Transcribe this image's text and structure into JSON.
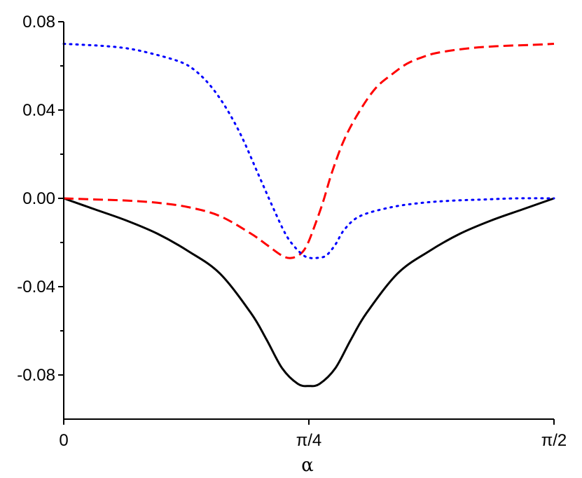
{
  "chart_data": {
    "type": "line",
    "xlabel": "α",
    "ylabel": "",
    "title": "",
    "xlim": [
      0,
      1.5708
    ],
    "ylim": [
      -0.1,
      0.08
    ],
    "x_ticks": [
      {
        "value": 0,
        "label": "0"
      },
      {
        "value": 0.7854,
        "label": "π/4"
      },
      {
        "value": 1.5708,
        "label": "π/2"
      }
    ],
    "y_ticks": [
      {
        "value": 0.08,
        "label": "0.08"
      },
      {
        "value": 0.04,
        "label": "0.04"
      },
      {
        "value": 0.0,
        "label": "0.00"
      },
      {
        "value": -0.04,
        "label": "-0.04"
      },
      {
        "value": -0.08,
        "label": "-0.08"
      }
    ],
    "grid": false,
    "legend": "none",
    "series": [
      {
        "style": "solid",
        "color": "#000000",
        "x": [
          0,
          0.1,
          0.2,
          0.3,
          0.4,
          0.5,
          0.6,
          0.65,
          0.7,
          0.75,
          0.7854,
          0.82,
          0.87,
          0.92,
          0.97,
          1.07,
          1.17,
          1.27,
          1.37,
          1.47,
          1.5708
        ],
        "y": [
          0.0,
          -0.005,
          -0.01,
          -0.016,
          -0.024,
          -0.034,
          -0.052,
          -0.064,
          -0.077,
          -0.084,
          -0.085,
          -0.084,
          -0.077,
          -0.064,
          -0.052,
          -0.034,
          -0.024,
          -0.016,
          -0.01,
          -0.005,
          0.0
        ]
      },
      {
        "style": "dashed",
        "color": "#ff0000",
        "x": [
          0,
          0.1,
          0.2,
          0.3,
          0.4,
          0.5,
          0.6,
          0.65,
          0.7,
          0.73,
          0.76,
          0.78,
          0.8,
          0.83,
          0.86,
          0.9,
          0.95,
          1.0,
          1.05,
          1.1,
          1.15,
          1.2,
          1.3,
          1.4,
          1.5,
          1.5708
        ],
        "y": [
          0.0,
          -0.0005,
          -0.001,
          -0.002,
          -0.004,
          -0.008,
          -0.016,
          -0.021,
          -0.026,
          -0.027,
          -0.025,
          -0.021,
          -0.014,
          -0.002,
          0.012,
          0.027,
          0.04,
          0.05,
          0.056,
          0.061,
          0.064,
          0.066,
          0.068,
          0.069,
          0.0695,
          0.07
        ]
      },
      {
        "style": "dotted",
        "color": "#0000ff",
        "x": [
          0,
          0.07,
          0.13,
          0.2,
          0.27,
          0.37,
          0.42,
          0.47,
          0.52,
          0.57,
          0.62,
          0.67,
          0.71,
          0.74,
          0.77,
          0.79,
          0.81,
          0.84,
          0.87,
          0.9,
          0.95,
          1.05,
          1.15,
          1.25,
          1.35,
          1.45,
          1.5708
        ],
        "y": [
          0.07,
          0.0695,
          0.069,
          0.068,
          0.066,
          0.062,
          0.058,
          0.051,
          0.041,
          0.028,
          0.012,
          -0.004,
          -0.016,
          -0.022,
          -0.026,
          -0.027,
          -0.027,
          -0.026,
          -0.021,
          -0.014,
          -0.008,
          -0.004,
          -0.002,
          -0.001,
          -0.0005,
          0.0,
          0.0
        ]
      }
    ]
  }
}
